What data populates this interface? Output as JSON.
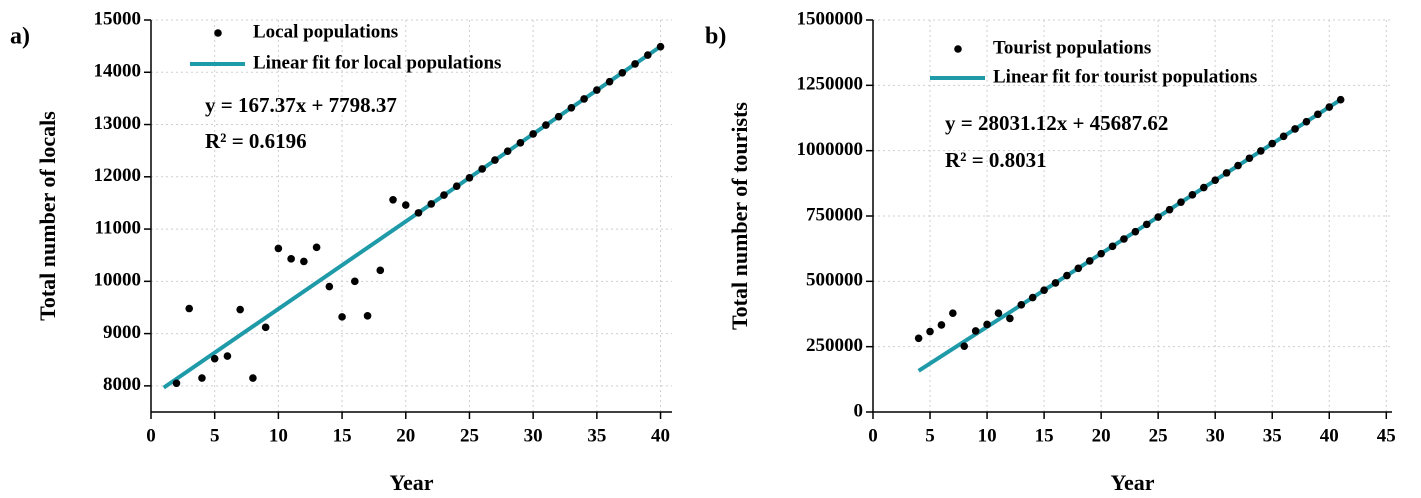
{
  "chart_data": [
    {
      "type": "scatter",
      "panel_label": "a)",
      "xlabel": "Year",
      "ylabel": "Total number of locals",
      "xlim": [
        0,
        40.9
      ],
      "xticks": [
        0,
        5,
        10,
        15,
        20,
        25,
        30,
        35,
        40
      ],
      "ylim": [
        7500,
        15000
      ],
      "yticks": [
        8000,
        9000,
        10000,
        11000,
        12000,
        13000,
        14000,
        15000
      ],
      "grid": true,
      "series": [
        {
          "name": "Local  populations",
          "style": "points",
          "color": "#000000",
          "x": [
            2,
            3,
            4,
            5,
            6,
            7,
            8,
            9,
            10,
            11,
            12,
            13,
            14,
            15,
            16,
            17,
            18,
            19,
            20,
            21,
            22,
            23,
            24,
            25,
            26,
            27,
            28,
            29,
            30,
            31,
            32,
            33,
            34,
            35,
            36,
            37,
            38,
            39,
            40
          ],
          "values": [
            8050,
            9480,
            8150,
            8520,
            8570,
            9460,
            8150,
            9120,
            10630,
            10430,
            10380,
            10650,
            9900,
            9320,
            10000,
            9340,
            10210,
            11560,
            11460,
            11310,
            11480,
            11650,
            11820,
            11980,
            12150,
            12320,
            12490,
            12650,
            12820,
            12990,
            13150,
            13320,
            13490,
            13660,
            13820,
            13990,
            14160,
            14330,
            14490
          ]
        },
        {
          "name": "Linear fit for local populations",
          "style": "line",
          "color": "#1f9aa8",
          "x": [
            1,
            40
          ],
          "values": [
            7966,
            14493
          ]
        }
      ],
      "annotations": [
        "y = 167.37x + 7798.37",
        "R² = 0.6196"
      ]
    },
    {
      "type": "scatter",
      "panel_label": "b)",
      "xlabel": "Year",
      "ylabel": "Total number of tourists",
      "xlim": [
        0,
        45.5
      ],
      "xticks": [
        0,
        5,
        10,
        15,
        20,
        25,
        30,
        35,
        40,
        45
      ],
      "ylim": [
        0,
        1500000
      ],
      "yticks": [
        0,
        250000,
        500000,
        750000,
        1000000,
        1250000,
        1500000
      ],
      "grid": true,
      "series": [
        {
          "name": "Tourist populations",
          "style": "points",
          "color": "#000000",
          "x": [
            4,
            5,
            6,
            7,
            8,
            9,
            10,
            11,
            12,
            13,
            14,
            15,
            16,
            17,
            18,
            19,
            20,
            21,
            22,
            23,
            24,
            25,
            26,
            27,
            28,
            29,
            30,
            31,
            32,
            33,
            34,
            35,
            36,
            37,
            38,
            39,
            40,
            41
          ],
          "values": [
            282000,
            308000,
            333000,
            378000,
            252000,
            310000,
            335000,
            378000,
            358000,
            410000,
            438000,
            466000,
            494000,
            522000,
            550000,
            578000,
            606000,
            634000,
            662000,
            690000,
            718000,
            746000,
            774000,
            803000,
            831000,
            859000,
            887000,
            915000,
            943000,
            971000,
            999000,
            1027000,
            1055000,
            1083000,
            1111000,
            1139000,
            1167000,
            1195000
          ]
        },
        {
          "name": "Linear fit for tourist populations",
          "style": "line",
          "color": "#1f9aa8",
          "x": [
            4,
            41
          ],
          "values": [
            157812,
            1194962
          ]
        }
      ],
      "annotations": [
        "y = 28031.12x + 45687.62",
        "R² = 0.8031"
      ]
    }
  ]
}
